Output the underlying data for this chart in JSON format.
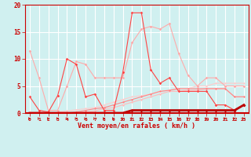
{
  "xlabel": "Vent moyen/en rafales ( km/h )",
  "x": [
    0,
    1,
    2,
    3,
    4,
    5,
    6,
    7,
    8,
    9,
    10,
    11,
    12,
    13,
    14,
    15,
    16,
    17,
    18,
    19,
    20,
    21,
    22,
    23
  ],
  "line1": [
    11.5,
    6.5,
    0.5,
    0.5,
    5.0,
    9.5,
    9.0,
    6.5,
    6.5,
    6.5,
    6.5,
    13.0,
    15.5,
    16.0,
    15.5,
    16.5,
    11.0,
    7.0,
    5.0,
    6.5,
    6.5,
    5.0,
    5.0,
    5.0
  ],
  "line2": [
    3.0,
    0.5,
    0.2,
    3.2,
    10.0,
    9.0,
    3.0,
    3.5,
    0.5,
    0.5,
    7.5,
    18.5,
    18.5,
    8.0,
    5.5,
    6.5,
    4.0,
    4.0,
    4.0,
    4.0,
    1.5,
    1.5,
    0.5,
    1.5
  ],
  "line3": [
    0.0,
    0.0,
    0.0,
    0.0,
    0.0,
    0.0,
    0.0,
    0.0,
    0.0,
    0.0,
    0.0,
    0.5,
    0.5,
    0.5,
    0.5,
    0.5,
    0.5,
    0.5,
    0.5,
    0.5,
    0.5,
    0.5,
    0.5,
    1.5
  ],
  "line4": [
    0.0,
    0.0,
    0.0,
    0.2,
    0.4,
    0.6,
    0.8,
    1.0,
    1.5,
    2.0,
    2.5,
    3.0,
    3.2,
    3.5,
    4.0,
    4.2,
    4.5,
    4.5,
    5.0,
    5.0,
    5.5,
    5.5,
    5.5,
    5.5
  ],
  "line5": [
    0.0,
    0.0,
    0.0,
    0.0,
    0.0,
    0.2,
    0.5,
    0.8,
    1.0,
    1.5,
    2.0,
    2.5,
    3.0,
    3.5,
    4.0,
    4.2,
    4.5,
    4.5,
    4.5,
    4.5,
    4.5,
    4.5,
    3.0,
    3.0
  ],
  "line6": [
    0.0,
    0.0,
    0.0,
    0.0,
    0.0,
    0.0,
    0.2,
    0.4,
    0.8,
    1.0,
    1.5,
    2.0,
    2.5,
    3.0,
    3.5,
    4.0,
    4.0,
    4.2,
    4.2,
    4.5,
    4.5,
    4.5,
    3.0,
    3.0
  ],
  "bg_color": "#d0f0f0",
  "grid_color": "#ffffff",
  "line1_color": "#ffaaaa",
  "line2_color": "#ff4444",
  "line3_color": "#bb0000",
  "line4_color": "#ffcccc",
  "line5_color": "#ff8888",
  "line6_color": "#ffbbbb",
  "ylim": [
    0,
    20
  ],
  "yticks": [
    0,
    5,
    10,
    15,
    20
  ],
  "tick_color": "#cc0000",
  "spine_color": "#cc0000"
}
